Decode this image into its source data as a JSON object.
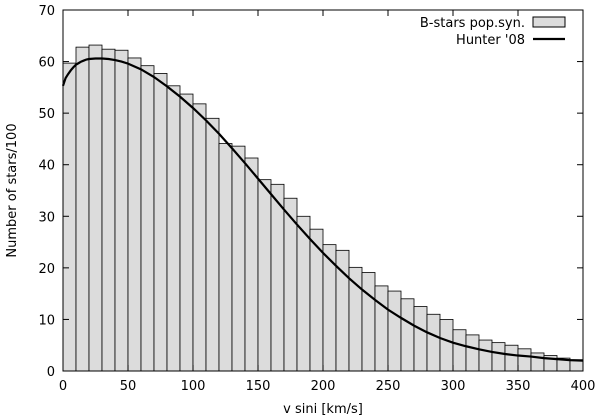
{
  "chart_data": {
    "type": "bar",
    "xlabel": "v sini [km/s]",
    "ylabel": "Number of stars/100",
    "xlim": [
      0,
      400
    ],
    "ylim": [
      0,
      70
    ],
    "x_ticks": [
      0,
      50,
      100,
      150,
      200,
      250,
      300,
      350,
      400
    ],
    "y_ticks": [
      0,
      10,
      20,
      30,
      40,
      50,
      60,
      70
    ],
    "x_tick_labels": [
      "0",
      "50",
      "100",
      "150",
      "200",
      "250",
      "300",
      "350",
      "400"
    ],
    "y_tick_labels": [
      "0",
      "10",
      "20",
      "30",
      "40",
      "50",
      "60",
      "70"
    ],
    "grid": false,
    "legend_position": "top-right",
    "series": [
      {
        "name": "B-stars pop.syn.",
        "type": "bar",
        "color": "#dcdcdc",
        "bin_width": 10,
        "bin_starts": [
          0,
          10,
          20,
          30,
          40,
          50,
          60,
          70,
          80,
          90,
          100,
          110,
          120,
          130,
          140,
          150,
          160,
          170,
          180,
          190,
          200,
          210,
          220,
          230,
          240,
          250,
          260,
          270,
          280,
          290,
          300,
          310,
          320,
          330,
          340,
          350,
          360,
          370,
          380,
          390
        ],
        "values": [
          59.7,
          62.8,
          63.2,
          62.4,
          62.2,
          60.7,
          59.2,
          57.7,
          55.3,
          53.7,
          51.8,
          49.0,
          44.1,
          43.6,
          41.3,
          37.1,
          36.2,
          33.5,
          30.0,
          27.5,
          24.5,
          23.4,
          20.1,
          19.1,
          16.5,
          15.5,
          14.0,
          12.5,
          11.0,
          10.0,
          8.0,
          7.0,
          6.0,
          5.5,
          5.0,
          4.3,
          3.5,
          3.0,
          2.5,
          2.2
        ]
      },
      {
        "name": "Hunter '08",
        "type": "line",
        "color": "#000000",
        "x": [
          0,
          2,
          4,
          6,
          8,
          10,
          12,
          14,
          16,
          18,
          20,
          25,
          30,
          35,
          40,
          45,
          50,
          60,
          70,
          80,
          90,
          100,
          110,
          120,
          130,
          140,
          150,
          160,
          170,
          180,
          190,
          200,
          210,
          220,
          230,
          240,
          250,
          260,
          270,
          280,
          290,
          300,
          310,
          320,
          330,
          340,
          350,
          360,
          370,
          380,
          390,
          400
        ],
        "y": [
          55.3,
          56.8,
          57.6,
          58.3,
          58.9,
          59.4,
          59.7,
          60.0,
          60.2,
          60.4,
          60.5,
          60.6,
          60.6,
          60.5,
          60.3,
          60.0,
          59.6,
          58.5,
          57.0,
          55.2,
          53.2,
          51.0,
          48.6,
          46.0,
          43.2,
          40.3,
          37.3,
          34.3,
          31.3,
          28.4,
          25.6,
          22.9,
          20.4,
          18.0,
          15.8,
          13.8,
          11.9,
          10.3,
          8.8,
          7.5,
          6.4,
          5.5,
          4.8,
          4.2,
          3.7,
          3.3,
          3.0,
          2.8,
          2.5,
          2.3,
          2.1,
          2.0
        ]
      }
    ]
  }
}
